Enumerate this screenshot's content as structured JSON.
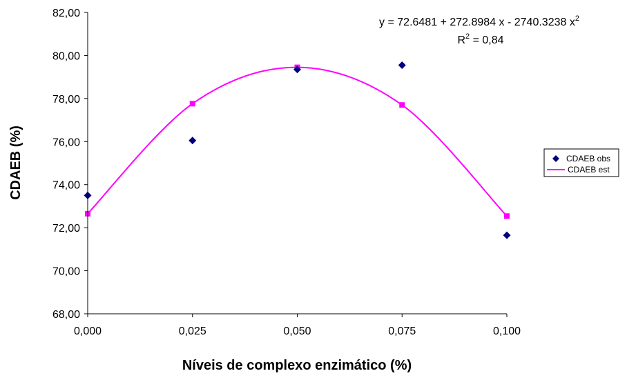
{
  "chart_data": {
    "type": "scatter",
    "xlabel": "Níveis de complexo enzimático (%)",
    "ylabel": "CDAEB (%)",
    "xlim": [
      0,
      0.1
    ],
    "ylim": [
      68,
      82
    ],
    "x_ticks": [
      "0,000",
      "0,025",
      "0,050",
      "0,075",
      "0,100"
    ],
    "y_ticks": [
      "68,00",
      "70,00",
      "72,00",
      "74,00",
      "76,00",
      "78,00",
      "80,00",
      "82,00"
    ],
    "grid": false,
    "legend_position": "right",
    "series": [
      {
        "name": "CDAEB obs",
        "marker": "diamond",
        "color": "#000080",
        "x": [
          0,
          0.025,
          0.05,
          0.075,
          0.1
        ],
        "y": [
          73.5,
          76.05,
          79.35,
          79.55,
          71.65
        ]
      },
      {
        "name": "CDAEB est",
        "marker": "square",
        "line": true,
        "color": "#ff00ff",
        "x": [
          0,
          0.025,
          0.05,
          0.075,
          0.1
        ],
        "y": [
          72.65,
          77.76,
          79.45,
          77.7,
          72.54
        ]
      }
    ],
    "annotations": {
      "equation_prefix": "y = 72.6481 + 272.8984 x - 2740.3238 x",
      "equation_exp": "2",
      "r2_prefix": "R",
      "r2_exp": "2",
      "r2_suffix": " = 0,84"
    }
  }
}
